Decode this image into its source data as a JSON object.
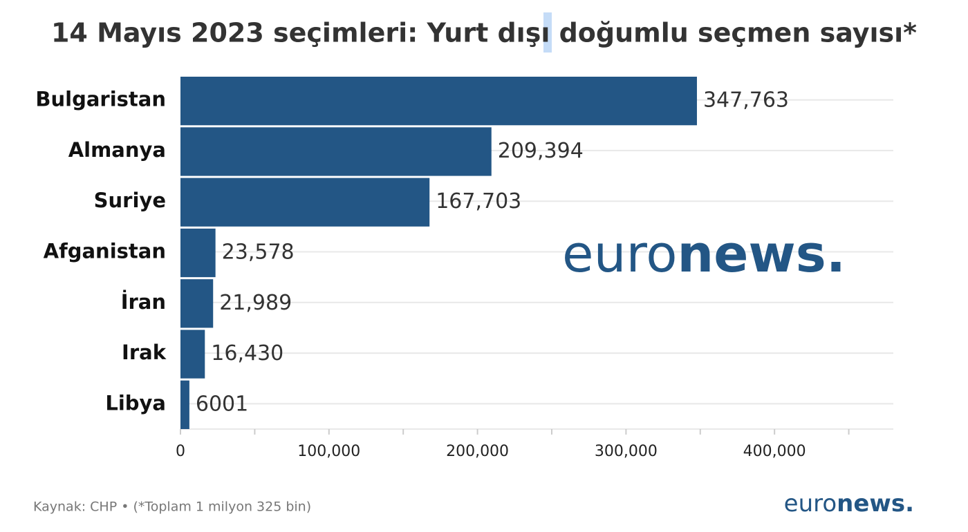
{
  "chart_data": {
    "type": "bar",
    "orientation": "horizontal",
    "title": "14 Mayıs 2023 seçimleri: Yurt dışı doğumlu seçmen sayısı*",
    "categories": [
      "Bulgaristan",
      "Almanya",
      "Suriye",
      "Afganistan",
      "İran",
      "Irak",
      "Libya"
    ],
    "values": [
      347763,
      209394,
      167703,
      23578,
      21989,
      16430,
      6001
    ],
    "value_labels": [
      "347,763",
      "209,394",
      "167,703",
      "23,578",
      "21,989",
      "16,430",
      "6001"
    ],
    "color": "#235685",
    "xlim": [
      0,
      480000
    ],
    "xticks": [
      0,
      {
        "value": 100000,
        "label": "100,000"
      },
      {
        "value": 200000,
        "label": "200,000"
      },
      {
        "value": 300000,
        "label": "300,000"
      },
      {
        "value": 400000,
        "label": "400,000"
      }
    ],
    "minor_xticks": [
      50000,
      150000,
      250000,
      350000,
      450000
    ],
    "grid": true,
    "source": "Kaynak: CHP • (*Toplam 1 milyon 325 bin)",
    "logo": [
      "euro",
      "news."
    ]
  }
}
